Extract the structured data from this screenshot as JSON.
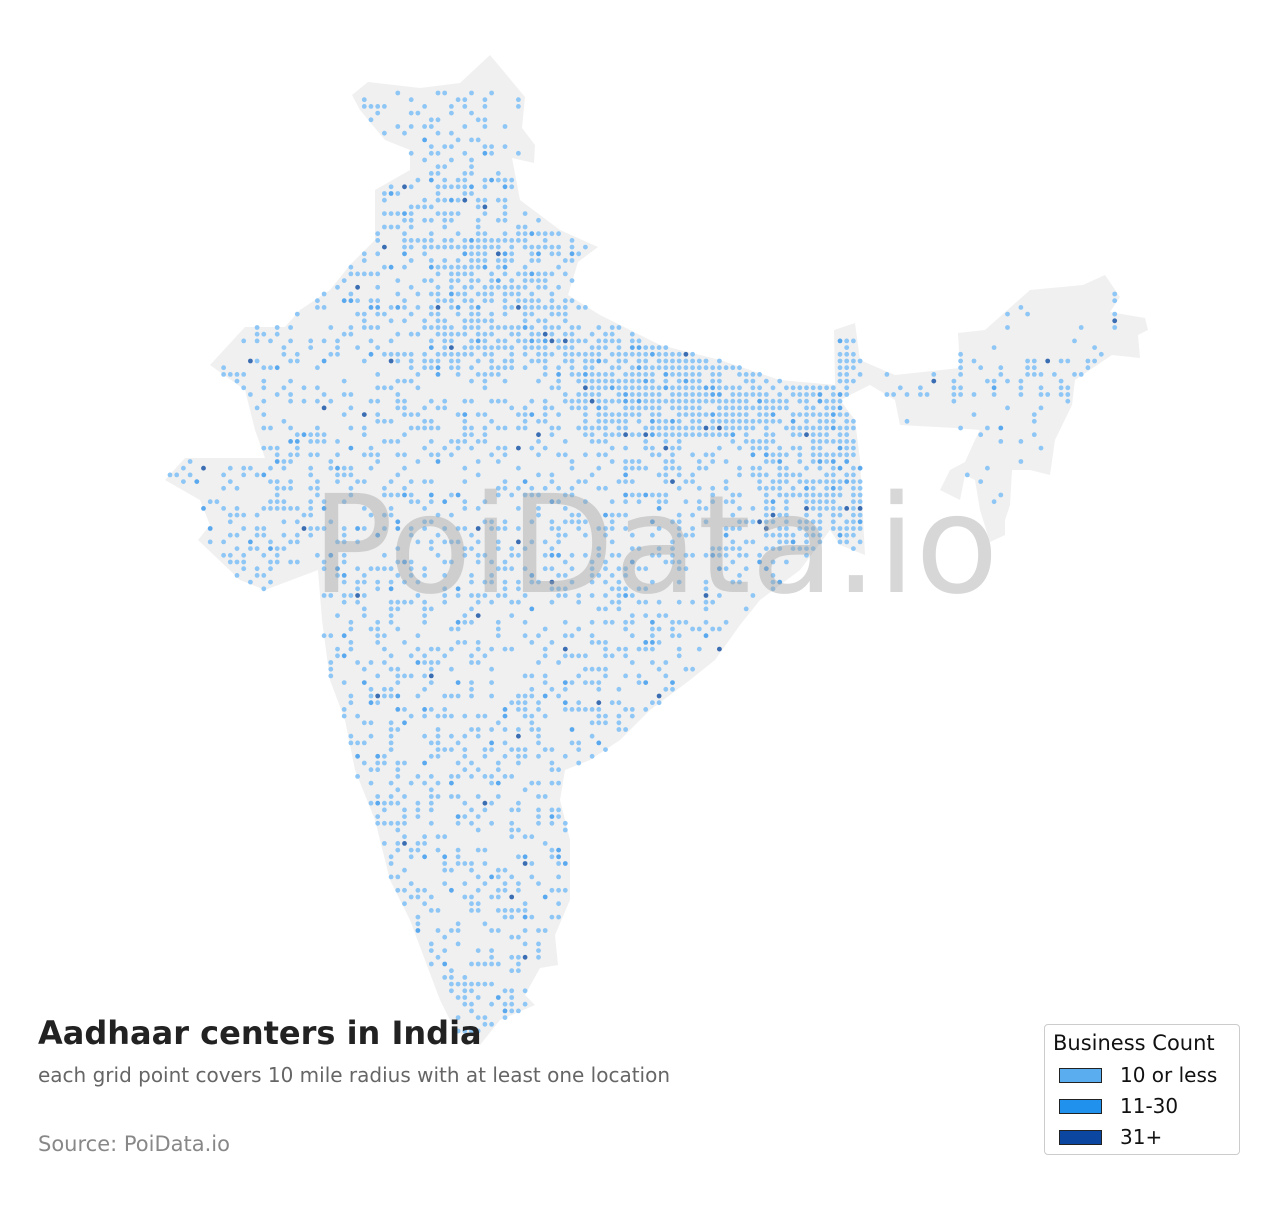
{
  "title": "Aadhaar centers in India",
  "subtitle": "each grid point covers 10 mile radius with at least one location",
  "source": "Source: PoiData.io",
  "watermark": "PoiData.io",
  "map": {
    "region": "India",
    "land_color": "#f0f0f0",
    "point_type": "grid points"
  },
  "legend": {
    "title": "Business Count",
    "items": [
      {
        "label": "10 or less",
        "color": "#5aaef0"
      },
      {
        "label": "11-30",
        "color": "#2191ee"
      },
      {
        "label": "31+",
        "color": "#0b47a1"
      }
    ]
  }
}
